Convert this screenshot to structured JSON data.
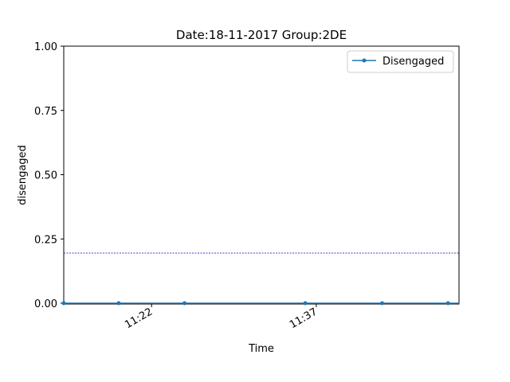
{
  "chart_data": {
    "type": "line",
    "title": "Date:18-11-2017  Group:2DE",
    "xlabel": "Time",
    "ylabel": "disengaged",
    "x_ticks": [
      "11:22",
      "11:37"
    ],
    "y_ticks": [
      "0.00",
      "0.25",
      "0.50",
      "0.75",
      "1.00"
    ],
    "ylim": [
      0,
      1
    ],
    "grid": false,
    "legend_position": "top-right",
    "series": [
      {
        "name": "Disengaged",
        "color": "#1f77b4",
        "x": [
          "11:13",
          "11:19",
          "11:25",
          "11:36",
          "11:43",
          "11:49"
        ],
        "y": [
          0,
          0,
          0,
          0,
          0,
          0
        ]
      }
    ],
    "reference_line": {
      "y": 0.195,
      "color": "#0000cc",
      "style": "dashed"
    }
  }
}
